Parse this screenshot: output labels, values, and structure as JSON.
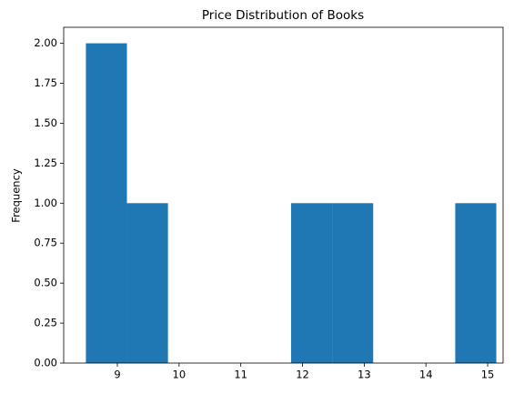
{
  "chart_data": {
    "type": "histogram",
    "title": "Price Distribution of Books",
    "y_label": "Frequency",
    "bins": [
      8.49,
      9.155,
      9.82,
      10.485,
      11.15,
      11.815,
      12.48,
      13.145,
      13.81,
      14.475,
      15.14
    ],
    "values": [
      2,
      1,
      0,
      0,
      0,
      1,
      1,
      0,
      0,
      1
    ],
    "color": "#1f77b4",
    "xlim": [
      8.13,
      15.25
    ],
    "xticks": [
      9,
      10,
      11,
      12,
      13,
      14,
      15
    ],
    "ylim": [
      0,
      2.1
    ],
    "yticks": [
      {
        "value": 0,
        "label": "0.00"
      },
      {
        "value": 0.25,
        "label": "0.25"
      },
      {
        "value": 0.5,
        "label": "0.50"
      },
      {
        "value": 0.75,
        "label": "0.75"
      },
      {
        "value": 1,
        "label": "1.00"
      },
      {
        "value": 1.25,
        "label": "1.25"
      },
      {
        "value": 1.5,
        "label": "1.50"
      },
      {
        "value": 1.75,
        "label": "1.75"
      },
      {
        "value": 2,
        "label": "2.00"
      }
    ],
    "grid": false
  }
}
